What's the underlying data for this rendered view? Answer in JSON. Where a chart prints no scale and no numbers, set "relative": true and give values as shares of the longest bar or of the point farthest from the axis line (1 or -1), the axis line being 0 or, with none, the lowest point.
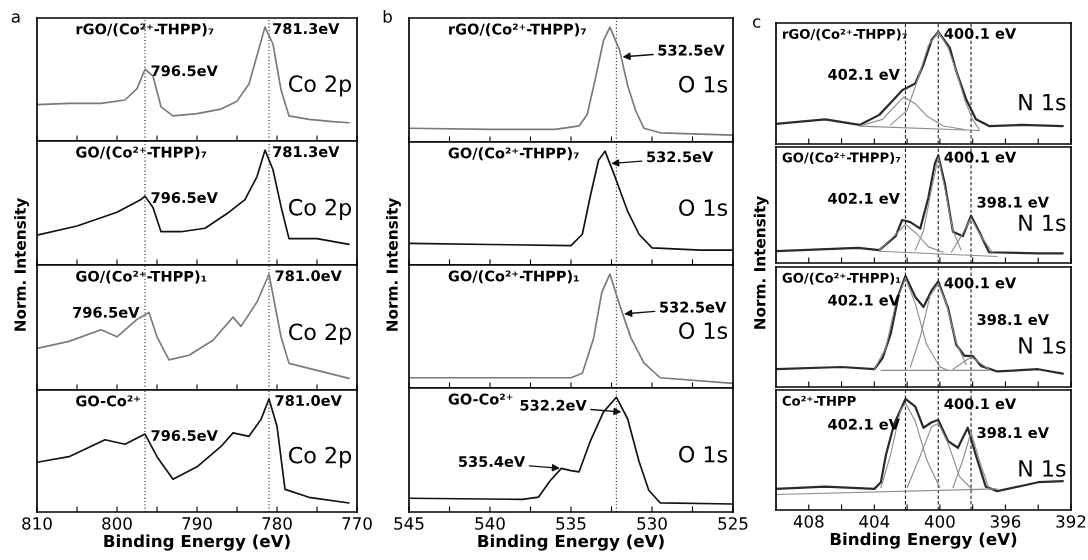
{
  "chart_data": [
    {
      "type": "line",
      "relative": true,
      "subtitle": "a",
      "title": "rGO/(Co²⁺-THPP)₇",
      "xlim": [
        810,
        770
      ],
      "tick_labels": false,
      "xticks": [
        810,
        {
          "value": 805,
          "label": null
        },
        800,
        {
          "value": 795,
          "label": null
        },
        790,
        {
          "value": 785,
          "label": null
        },
        780,
        {
          "value": 775,
          "label": null
        },
        770
      ],
      "series": [
        {
          "color": "#7a7a7a",
          "x": [
            810,
            806,
            802,
            799,
            797.5,
            796.5,
            795.5,
            794.5,
            793,
            790,
            787,
            785,
            783.5,
            782.5,
            781.5,
            780.5,
            779.5,
            778.5,
            776,
            773,
            771
          ],
          "values": [
            0.32,
            0.33,
            0.33,
            0.36,
            0.46,
            0.63,
            0.57,
            0.3,
            0.22,
            0.24,
            0.28,
            0.35,
            0.5,
            0.75,
            1.0,
            0.85,
            0.45,
            0.22,
            0.19,
            0.17,
            0.16
          ]
        }
      ],
      "ref_lines": [
        {
          "axis": "x",
          "value": 796.5,
          "label": null,
          "line_style": "dotted"
        },
        {
          "axis": "x",
          "value": 781.0,
          "label": null,
          "line_style": "dotted"
        }
      ],
      "annotations": [
        {
          "text": "781.3eV",
          "x": 781.3,
          "y": 1.0
        },
        {
          "text": "796.5eV",
          "x": 796.5,
          "y": 0.63
        },
        "Co 2p"
      ]
    },
    {
      "type": "line",
      "relative": true,
      "title": "GO/(Co²⁺-THPP)₇",
      "ylabel": "Norm. Intensity",
      "xlim": [
        810,
        770
      ],
      "tick_labels": false,
      "xticks": [
        810,
        {
          "value": 805,
          "label": null
        },
        800,
        {
          "value": 795,
          "label": null
        },
        790,
        {
          "value": 785,
          "label": null
        },
        780,
        {
          "value": 775,
          "label": null
        },
        770
      ],
      "series": [
        {
          "color": "#111111",
          "x": [
            810,
            805,
            800,
            797,
            796.5,
            795.5,
            794.5,
            792,
            789,
            786,
            784,
            782.5,
            781.5,
            780.5,
            779.5,
            778.5,
            775,
            771
          ],
          "values": [
            0.26,
            0.34,
            0.46,
            0.57,
            0.6,
            0.5,
            0.29,
            0.29,
            0.32,
            0.46,
            0.57,
            0.77,
            1.0,
            0.83,
            0.51,
            0.23,
            0.23,
            0.18
          ]
        }
      ],
      "ref_lines": [
        {
          "axis": "x",
          "value": 796.5,
          "label": null,
          "line_style": "dotted"
        },
        {
          "axis": "x",
          "value": 781.0,
          "label": null,
          "line_style": "dotted"
        }
      ],
      "annotations": [
        {
          "text": "781.3eV",
          "x": 781.3,
          "y": 1.0
        },
        {
          "text": "796.5eV",
          "x": 796.5,
          "y": 0.6
        },
        "Co 2p"
      ]
    },
    {
      "type": "line",
      "relative": true,
      "title": "GO/(Co²⁺-THPP)₁",
      "xlim": [
        810,
        770
      ],
      "tick_labels": false,
      "xticks": [
        810,
        {
          "value": 805,
          "label": null
        },
        800,
        {
          "value": 795,
          "label": null
        },
        790,
        {
          "value": 785,
          "label": null
        },
        780,
        {
          "value": 775,
          "label": null
        },
        770
      ],
      "series": [
        {
          "color": "#7a7a7a",
          "x": [
            810,
            806,
            802,
            800,
            797.5,
            796,
            795,
            793.5,
            791,
            788,
            785.5,
            784.5,
            782.5,
            781,
            779.5,
            778.5,
            775,
            771
          ],
          "values": [
            0.36,
            0.42,
            0.52,
            0.46,
            0.61,
            0.67,
            0.46,
            0.26,
            0.3,
            0.43,
            0.63,
            0.55,
            0.76,
            1.0,
            0.46,
            0.23,
            0.17,
            0.1
          ]
        }
      ],
      "ref_lines": [
        {
          "axis": "x",
          "value": 796.5,
          "label": null,
          "line_style": "dotted"
        },
        {
          "axis": "x",
          "value": 781.0,
          "label": null,
          "line_style": "dotted"
        }
      ],
      "annotations": [
        {
          "text": "781.0eV",
          "x": 781.0,
          "y": 1.0
        },
        {
          "text": "796.5eV",
          "x": 796.5,
          "y": 0.66
        },
        "Co 2p"
      ]
    },
    {
      "type": "line",
      "relative": true,
      "title": "GO-Co²⁺",
      "xlabel": "Binding Energy (eV)",
      "xlim": [
        810,
        770
      ],
      "tick_labels": "x",
      "xticks": [
        810,
        {
          "value": 805,
          "label": null
        },
        800,
        {
          "value": 795,
          "label": null
        },
        790,
        {
          "value": 785,
          "label": null
        },
        780,
        {
          "value": 775,
          "label": null
        },
        770
      ],
      "series": [
        {
          "color": "#111111",
          "x": [
            810,
            806,
            801.5,
            799,
            796.5,
            795,
            793,
            790,
            787,
            785.5,
            783.5,
            782,
            781,
            780,
            779,
            776,
            771
          ],
          "values": [
            0.44,
            0.49,
            0.64,
            0.6,
            0.69,
            0.49,
            0.29,
            0.4,
            0.58,
            0.7,
            0.67,
            0.82,
            1.0,
            0.76,
            0.2,
            0.13,
            0.08
          ]
        }
      ],
      "ref_lines": [
        {
          "axis": "x",
          "value": 796.5,
          "label": null,
          "line_style": "dotted"
        },
        {
          "axis": "x",
          "value": 781.0,
          "label": null,
          "line_style": "dotted"
        }
      ],
      "annotations": [
        {
          "text": "781.0eV",
          "x": 781.0,
          "y": 1.0
        },
        {
          "text": "796.5eV",
          "x": 796.5,
          "y": 0.69
        },
        "Co 2p"
      ]
    },
    {
      "type": "line",
      "relative": true,
      "subtitle": "b",
      "title": "rGO/(Co²⁺-THPP)₇",
      "xlim": [
        545,
        525
      ],
      "tick_labels": false,
      "xticks": [
        545,
        {
          "value": 542.5,
          "label": null
        },
        540,
        {
          "value": 537.5,
          "label": null
        },
        535,
        {
          "value": 532.5,
          "label": null
        },
        530,
        {
          "value": 527.5,
          "label": null
        },
        525
      ],
      "series": [
        {
          "color": "#7a7a7a",
          "x": [
            545,
            540,
            536,
            535,
            534.5,
            534,
            533.5,
            533,
            532.6,
            532,
            531.5,
            531,
            530.5,
            529.5,
            525
          ],
          "values": [
            0.12,
            0.11,
            0.11,
            0.13,
            0.14,
            0.24,
            0.55,
            0.88,
            1.0,
            0.8,
            0.49,
            0.27,
            0.12,
            0.08,
            0.06
          ]
        }
      ],
      "ref_lines": [
        {
          "axis": "x",
          "value": 532.2,
          "label": null,
          "line_style": "dotted"
        }
      ],
      "annotations": [
        {
          "text": "532.5eV",
          "x": 531.9,
          "y": 0.74
        },
        "O 1s"
      ]
    },
    {
      "type": "line",
      "relative": true,
      "title": "GO/(Co²⁺-THPP)₇",
      "ylabel": "Norm. Intensity",
      "xlim": [
        545,
        525
      ],
      "tick_labels": false,
      "xticks": [
        545,
        {
          "value": 542.5,
          "label": null
        },
        540,
        {
          "value": 537.5,
          "label": null
        },
        535,
        {
          "value": 532.5,
          "label": null
        },
        530,
        {
          "value": 527.5,
          "label": null
        },
        525
      ],
      "series": [
        {
          "color": "#111111",
          "x": [
            545,
            540,
            535,
            534.3,
            533.8,
            533.3,
            532.9,
            532.3,
            531.5,
            530.8,
            530,
            527,
            525
          ],
          "values": [
            0.19,
            0.18,
            0.17,
            0.27,
            0.61,
            0.92,
            1.0,
            0.78,
            0.47,
            0.27,
            0.15,
            0.13,
            0.13
          ]
        }
      ],
      "ref_lines": [
        {
          "axis": "x",
          "value": 532.2,
          "label": null,
          "line_style": "dotted"
        }
      ],
      "annotations": [
        {
          "text": "532.5eV",
          "x": 532.6,
          "y": 0.89
        },
        "O 1s"
      ]
    },
    {
      "type": "line",
      "relative": true,
      "title": "GO/(Co²⁺-THPP)₁",
      "xlim": [
        545,
        525
      ],
      "tick_labels": false,
      "xticks": [
        545,
        {
          "value": 542.5,
          "label": null
        },
        540,
        {
          "value": 537.5,
          "label": null
        },
        535,
        {
          "value": 532.5,
          "label": null
        },
        530,
        {
          "value": 527.5,
          "label": null
        },
        525
      ],
      "series": [
        {
          "color": "#7a7a7a",
          "x": [
            545,
            535,
            534.3,
            533.6,
            533.1,
            532.6,
            532,
            531.3,
            530.5,
            529.5,
            525
          ],
          "values": [
            0.09,
            0.09,
            0.13,
            0.44,
            0.84,
            1.0,
            0.73,
            0.44,
            0.22,
            0.09,
            0.04
          ]
        }
      ],
      "ref_lines": [
        {
          "axis": "x",
          "value": 532.2,
          "label": null,
          "line_style": "dotted"
        }
      ],
      "annotations": [
        {
          "text": "532.5eV",
          "x": 531.8,
          "y": 0.65
        },
        "O 1s"
      ]
    },
    {
      "type": "line",
      "relative": true,
      "title": "GO-Co²⁺",
      "xlabel": "Binding Energy (eV)",
      "xlim": [
        545,
        525
      ],
      "tick_labels": "x",
      "xticks": [
        545,
        {
          "value": 542.5,
          "label": null
        },
        540,
        {
          "value": 537.5,
          "label": null
        },
        535,
        {
          "value": 532.5,
          "label": null
        },
        530,
        {
          "value": 527.5,
          "label": null
        },
        525
      ],
      "series": [
        {
          "color": "#111111",
          "x": [
            545,
            538,
            537,
            536.3,
            535.6,
            535,
            534.5,
            533.8,
            533,
            532.2,
            531.5,
            530.8,
            530.2,
            529.5,
            525
          ],
          "values": [
            0.12,
            0.11,
            0.13,
            0.27,
            0.38,
            0.36,
            0.35,
            0.62,
            0.87,
            1.0,
            0.81,
            0.44,
            0.19,
            0.08,
            0.07
          ]
        }
      ],
      "ref_lines": [
        {
          "axis": "x",
          "value": 532.2,
          "label": null,
          "line_style": "dotted"
        }
      ],
      "annotations": [
        {
          "text": "532.2eV",
          "x": 531.8,
          "y": 0.87
        },
        {
          "text": "535.4eV",
          "x": 535.6,
          "y": 0.38
        },
        "O 1s"
      ]
    },
    {
      "type": "line",
      "relative": true,
      "subtitle": "c",
      "title": "rGO/(Co²⁺-THPP)₇",
      "xlim": [
        410,
        392
      ],
      "tick_labels": false,
      "xticks": [
        408,
        {
          "value": 406,
          "label": null
        },
        404,
        {
          "value": 402,
          "label": null
        },
        400,
        {
          "value": 398,
          "label": null
        },
        396,
        {
          "value": 394,
          "label": null
        },
        392
      ],
      "series": [
        {
          "color": "#2b2b2b",
          "x": [
            410,
            407,
            404.9,
            403.7,
            402.8,
            402.3,
            401.5,
            401,
            400.5,
            400.1,
            399.4,
            399,
            398.4,
            397.8,
            397,
            395,
            392.5
          ],
          "values": [
            0.18,
            0.22,
            0.17,
            0.26,
            0.4,
            0.48,
            0.54,
            0.71,
            0.93,
            1.0,
            0.86,
            0.65,
            0.4,
            0.22,
            0.16,
            0.17,
            0.16
          ]
        },
        {
          "color": "#8c8c8c",
          "x": [
            404.9,
            397.6
          ],
          "values": [
            0.16,
            0.12
          ]
        },
        {
          "color": "#8c8c8c",
          "x": [
            404.9,
            403.5,
            402.8,
            402.2,
            401.5,
            400.8,
            399.8,
            398.5
          ],
          "values": [
            0.16,
            0.22,
            0.33,
            0.42,
            0.36,
            0.25,
            0.16,
            0.13
          ]
        },
        {
          "color": "#8c8c8c",
          "x": [
            403,
            402,
            401.3,
            400.7,
            400.1,
            399.5,
            399,
            398.5,
            398,
            397.6
          ],
          "values": [
            0.17,
            0.3,
            0.6,
            0.88,
            1.0,
            0.86,
            0.65,
            0.4,
            0.22,
            0.13
          ]
        }
      ],
      "ref_lines": [
        {
          "axis": "x",
          "value": 402.1,
          "label": null,
          "line_style": "dashed"
        },
        {
          "axis": "x",
          "value": 400.1,
          "label": null,
          "line_style": "dashed"
        },
        {
          "axis": "x",
          "value": 398.1,
          "label": null,
          "line_style": "dashed"
        }
      ],
      "annotations": [
        {
          "text": "400.1 eV",
          "x": 400.1,
          "y": 1.0
        },
        {
          "text": "402.1 eV",
          "x": 402.1,
          "y": 0.61
        },
        "N 1s"
      ]
    },
    {
      "type": "line",
      "relative": true,
      "title": "GO/(Co²⁺-THPP)₇",
      "ylabel": "Norm. Intensity",
      "xlim": [
        410,
        392
      ],
      "tick_labels": false,
      "xticks": [
        408,
        {
          "value": 406,
          "label": null
        },
        404,
        {
          "value": 402,
          "label": null
        },
        400,
        {
          "value": 398,
          "label": null
        },
        396,
        {
          "value": 394,
          "label": null
        },
        392
      ],
      "series": [
        {
          "color": "#2b2b2b",
          "x": [
            410,
            405,
            403.7,
            402.7,
            402.3,
            401.8,
            401.2,
            400.7,
            400.3,
            400.1,
            399.7,
            399.2,
            398.6,
            398.1,
            397.6,
            397,
            394,
            392.5
          ],
          "values": [
            0.11,
            0.14,
            0.12,
            0.25,
            0.4,
            0.38,
            0.32,
            0.61,
            0.93,
            1.0,
            0.74,
            0.29,
            0.25,
            0.44,
            0.29,
            0.1,
            0.09,
            0.09
          ]
        },
        {
          "color": "#8c8c8c",
          "x": [
            403.7,
            396.5
          ],
          "values": [
            0.11,
            0.06
          ]
        },
        {
          "color": "#8c8c8c",
          "x": [
            403.7,
            402.8,
            402.1,
            401.4,
            400.7,
            399.8
          ],
          "values": [
            0.12,
            0.25,
            0.36,
            0.27,
            0.15,
            0.1
          ]
        },
        {
          "color": "#8c8c8c",
          "x": [
            401.5,
            401,
            400.5,
            400.1,
            399.7,
            399.2,
            398.7
          ],
          "values": [
            0.12,
            0.3,
            0.7,
            0.98,
            0.7,
            0.3,
            0.12
          ]
        },
        {
          "color": "#8c8c8c",
          "x": [
            399.3,
            398.7,
            398.1,
            397.5,
            396.8
          ],
          "values": [
            0.1,
            0.25,
            0.42,
            0.25,
            0.1
          ]
        }
      ],
      "ref_lines": [
        {
          "axis": "x",
          "value": 402.1,
          "label": null,
          "line_style": "dashed"
        },
        {
          "axis": "x",
          "value": 400.1,
          "label": null,
          "line_style": "dashed"
        },
        {
          "axis": "x",
          "value": 398.1,
          "label": null,
          "line_style": "dashed"
        }
      ],
      "annotations": [
        {
          "text": "400.1 eV",
          "x": 400.1,
          "y": 1.0
        },
        {
          "text": "402.1 eV",
          "x": 402.1,
          "y": 0.59
        },
        {
          "text": "398.1 eV",
          "x": 398.1,
          "y": 0.58
        },
        "N 1s"
      ]
    },
    {
      "type": "line",
      "relative": true,
      "title": "GO/(Co²⁺-THPP)₁",
      "xlim": [
        410,
        392
      ],
      "tick_labels": false,
      "xticks": [
        408,
        {
          "value": 406,
          "label": null
        },
        404,
        {
          "value": 402,
          "label": null
        },
        400,
        {
          "value": 398,
          "label": null
        },
        396,
        {
          "value": 394,
          "label": null
        },
        392
      ],
      "series": [
        {
          "color": "#2b2b2b",
          "x": [
            410,
            406,
            404,
            403.5,
            403,
            402.5,
            402.1,
            401.5,
            401,
            400.5,
            400.1,
            399.5,
            399,
            398.5,
            398,
            397.5,
            396.5,
            394,
            392.5
          ],
          "values": [
            0.16,
            0.18,
            0.16,
            0.26,
            0.48,
            0.84,
            1.0,
            0.81,
            0.72,
            0.87,
            0.95,
            0.71,
            0.38,
            0.28,
            0.28,
            0.19,
            0.14,
            0.16,
            0.12
          ]
        },
        {
          "color": "#8c8c8c",
          "x": [
            403.6,
            397
          ],
          "values": [
            0.15,
            0.15
          ]
        },
        {
          "color": "#8c8c8c",
          "x": [
            404,
            403.3,
            402.7,
            402.1,
            401.5,
            400.8,
            400,
            399.5
          ],
          "values": [
            0.16,
            0.35,
            0.75,
            0.98,
            0.75,
            0.38,
            0.18,
            0.15
          ]
        },
        {
          "color": "#8c8c8c",
          "x": [
            401.8,
            401.2,
            400.6,
            400.1,
            399.6,
            399,
            398.4
          ],
          "values": [
            0.18,
            0.45,
            0.82,
            0.93,
            0.75,
            0.4,
            0.2
          ]
        },
        {
          "color": "#8c8c8c",
          "x": [
            399.2,
            398.6,
            398.1,
            397.6,
            397
          ],
          "values": [
            0.16,
            0.22,
            0.27,
            0.22,
            0.16
          ]
        }
      ],
      "ref_lines": [
        {
          "axis": "x",
          "value": 402.1,
          "label": null,
          "line_style": "dashed"
        },
        {
          "axis": "x",
          "value": 400.1,
          "label": null,
          "line_style": "dashed"
        },
        {
          "axis": "x",
          "value": 398.1,
          "label": null,
          "line_style": "dashed"
        }
      ],
      "annotations": [
        {
          "text": "400.1 eV",
          "x": 400.1,
          "y": 0.95
        },
        {
          "text": "402.1 eV",
          "x": 402.1,
          "y": 0.77
        },
        {
          "text": "398.1 eV",
          "x": 398.1,
          "y": 0.62
        },
        "N 1s"
      ]
    },
    {
      "type": "line",
      "relative": true,
      "title": "Co²⁺-THPP",
      "xlabel": "Binding Energy (eV)",
      "xlim": [
        410,
        392
      ],
      "tick_labels": "x",
      "xticks": [
        408,
        {
          "value": 406,
          "label": null
        },
        404,
        {
          "value": 402,
          "label": null
        },
        400,
        {
          "value": 398,
          "label": null
        },
        396,
        {
          "value": 394,
          "label": null
        },
        392
      ],
      "series": [
        {
          "color": "#2b2b2b",
          "x": [
            410,
            407,
            404,
            403.6,
            403.3,
            402.8,
            402.1,
            401.5,
            401,
            400.5,
            400.1,
            399.5,
            398.9,
            398.3,
            397.8,
            397.2,
            396.5,
            394,
            392.5
          ],
          "values": [
            0.19,
            0.21,
            0.19,
            0.25,
            0.49,
            0.77,
            1.0,
            0.93,
            0.74,
            0.79,
            0.81,
            0.62,
            0.56,
            0.74,
            0.49,
            0.21,
            0.17,
            0.25,
            0.26
          ]
        },
        {
          "color": "#8c8c8c",
          "x": [
            410,
            396.5
          ],
          "values": [
            0.14,
            0.19
          ]
        },
        {
          "color": "#8c8c8c",
          "x": [
            403.6,
            403,
            402.4,
            402.1,
            401.5,
            400.8,
            400
          ],
          "values": [
            0.2,
            0.5,
            0.9,
            0.96,
            0.8,
            0.45,
            0.2
          ]
        },
        {
          "color": "#8c8c8c",
          "x": [
            402,
            401.3,
            400.5,
            400.1,
            399.5,
            398.8,
            398
          ],
          "values": [
            0.2,
            0.45,
            0.75,
            0.78,
            0.6,
            0.3,
            0.18
          ]
        },
        {
          "color": "#8c8c8c",
          "x": [
            399.2,
            398.6,
            398.1,
            397.6,
            397
          ],
          "values": [
            0.2,
            0.45,
            0.7,
            0.45,
            0.19
          ]
        }
      ],
      "ref_lines": [
        {
          "axis": "x",
          "value": 402.1,
          "label": null,
          "line_style": "dashed"
        },
        {
          "axis": "x",
          "value": 400.1,
          "label": null,
          "line_style": "dashed"
        },
        {
          "axis": "x",
          "value": 398.1,
          "label": null,
          "line_style": "dashed"
        }
      ],
      "annotations": [
        {
          "text": "400.1 eV",
          "x": 400.1,
          "y": 0.97
        },
        {
          "text": "402.1 eV",
          "x": 402.1,
          "y": 0.76
        },
        {
          "text": "398.1 eV",
          "x": 398.1,
          "y": 0.71
        },
        "N 1s"
      ]
    }
  ]
}
